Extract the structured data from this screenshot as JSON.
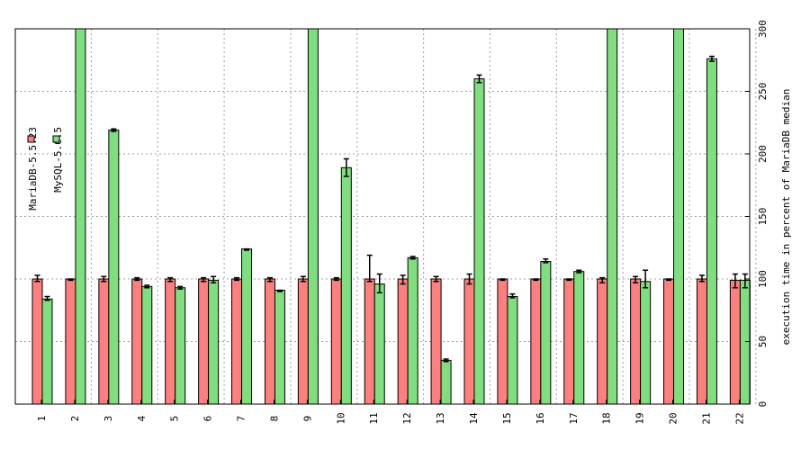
{
  "chart_data": {
    "type": "bar",
    "title": "",
    "xlabel": "",
    "ylabel": "execution time in percent of MariaDB median",
    "ylim": [
      0,
      300
    ],
    "yticks": [
      0,
      50,
      100,
      150,
      200,
      250,
      300
    ],
    "grid": true,
    "legend_position": "top-left (rotated)",
    "categories": [
      "1",
      "2",
      "3",
      "4",
      "5",
      "6",
      "7",
      "8",
      "9",
      "10",
      "11",
      "12",
      "13",
      "14",
      "15",
      "16",
      "17",
      "18",
      "19",
      "20",
      "21",
      "22"
    ],
    "series": [
      {
        "name": "MariaDB-5.5.23",
        "color": "#ff7f7f",
        "values": [
          100,
          100,
          100,
          100,
          100,
          100,
          100,
          100,
          100,
          100,
          100,
          100,
          100,
          100,
          100,
          100,
          100,
          100,
          100,
          100,
          100,
          99
        ],
        "error": [
          [
            98,
            103
          ],
          [
            99,
            100
          ],
          [
            98,
            102
          ],
          [
            99,
            101
          ],
          [
            98,
            101
          ],
          [
            98,
            101
          ],
          [
            99,
            101
          ],
          [
            98,
            101
          ],
          [
            98,
            102
          ],
          [
            99,
            101
          ],
          [
            98,
            119
          ],
          [
            96,
            103
          ],
          [
            98,
            102
          ],
          [
            96,
            104
          ],
          [
            99,
            100
          ],
          [
            99,
            100
          ],
          [
            99,
            100
          ],
          [
            97,
            101
          ],
          [
            97,
            102
          ],
          [
            99,
            100
          ],
          [
            98,
            103
          ],
          [
            93,
            104
          ]
        ]
      },
      {
        "name": "MySQL-5.6.5",
        "color": "#7fdf7f",
        "values": [
          84,
          300,
          219,
          94,
          93,
          99,
          124,
          91,
          300,
          189,
          96,
          117,
          35,
          260,
          86,
          114,
          106,
          300,
          98,
          300,
          276,
          99
        ],
        "error": [
          [
            83,
            86
          ],
          [
            300,
            300
          ],
          [
            218,
            220
          ],
          [
            93,
            95
          ],
          [
            92,
            94
          ],
          [
            97,
            102
          ],
          [
            123,
            124
          ],
          [
            90,
            91
          ],
          [
            300,
            300
          ],
          [
            182,
            196
          ],
          [
            89,
            104
          ],
          [
            116,
            118
          ],
          [
            34,
            36
          ],
          [
            257,
            263
          ],
          [
            85,
            88
          ],
          [
            113,
            116
          ],
          [
            105,
            107
          ],
          [
            300,
            300
          ],
          [
            93,
            107
          ],
          [
            300,
            300
          ],
          [
            274,
            278
          ],
          [
            93,
            104
          ]
        ]
      }
    ]
  }
}
